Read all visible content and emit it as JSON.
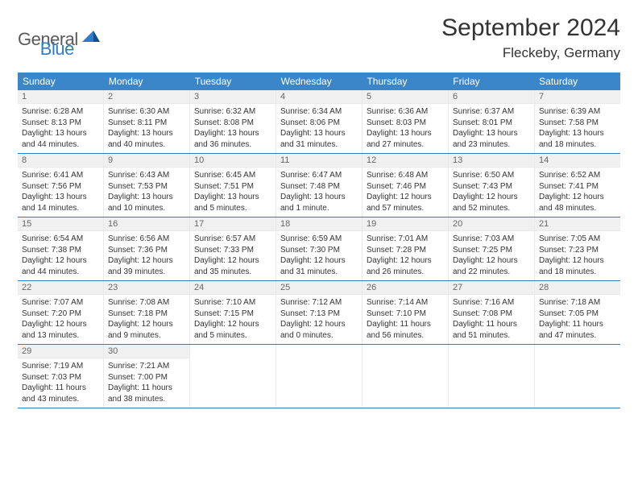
{
  "brand": {
    "text_left": "General",
    "text_right": "Blue"
  },
  "title": "September 2024",
  "location": "Fleckeby, Germany",
  "colors": {
    "header_bg": "#3b86c8",
    "header_text": "#ffffff",
    "rule": "#2f7bcb",
    "daynum_bg": "#f0f0f0",
    "daynum_text": "#666666",
    "cell_border": "#e9e9e9",
    "body_text": "#333333",
    "logo_gray": "#5a5a5a",
    "logo_blue": "#2f7bcb",
    "background": "#ffffff"
  },
  "typography": {
    "title_fontsize": 30,
    "location_fontsize": 17,
    "dow_fontsize": 12,
    "daynum_fontsize": 11,
    "body_fontsize": 10
  },
  "dow": [
    "Sunday",
    "Monday",
    "Tuesday",
    "Wednesday",
    "Thursday",
    "Friday",
    "Saturday"
  ],
  "weeks": [
    [
      {
        "n": "1",
        "sunrise": "Sunrise: 6:28 AM",
        "sunset": "Sunset: 8:13 PM",
        "daylight": "Daylight: 13 hours and 44 minutes."
      },
      {
        "n": "2",
        "sunrise": "Sunrise: 6:30 AM",
        "sunset": "Sunset: 8:11 PM",
        "daylight": "Daylight: 13 hours and 40 minutes."
      },
      {
        "n": "3",
        "sunrise": "Sunrise: 6:32 AM",
        "sunset": "Sunset: 8:08 PM",
        "daylight": "Daylight: 13 hours and 36 minutes."
      },
      {
        "n": "4",
        "sunrise": "Sunrise: 6:34 AM",
        "sunset": "Sunset: 8:06 PM",
        "daylight": "Daylight: 13 hours and 31 minutes."
      },
      {
        "n": "5",
        "sunrise": "Sunrise: 6:36 AM",
        "sunset": "Sunset: 8:03 PM",
        "daylight": "Daylight: 13 hours and 27 minutes."
      },
      {
        "n": "6",
        "sunrise": "Sunrise: 6:37 AM",
        "sunset": "Sunset: 8:01 PM",
        "daylight": "Daylight: 13 hours and 23 minutes."
      },
      {
        "n": "7",
        "sunrise": "Sunrise: 6:39 AM",
        "sunset": "Sunset: 7:58 PM",
        "daylight": "Daylight: 13 hours and 18 minutes."
      }
    ],
    [
      {
        "n": "8",
        "sunrise": "Sunrise: 6:41 AM",
        "sunset": "Sunset: 7:56 PM",
        "daylight": "Daylight: 13 hours and 14 minutes."
      },
      {
        "n": "9",
        "sunrise": "Sunrise: 6:43 AM",
        "sunset": "Sunset: 7:53 PM",
        "daylight": "Daylight: 13 hours and 10 minutes."
      },
      {
        "n": "10",
        "sunrise": "Sunrise: 6:45 AM",
        "sunset": "Sunset: 7:51 PM",
        "daylight": "Daylight: 13 hours and 5 minutes."
      },
      {
        "n": "11",
        "sunrise": "Sunrise: 6:47 AM",
        "sunset": "Sunset: 7:48 PM",
        "daylight": "Daylight: 13 hours and 1 minute."
      },
      {
        "n": "12",
        "sunrise": "Sunrise: 6:48 AM",
        "sunset": "Sunset: 7:46 PM",
        "daylight": "Daylight: 12 hours and 57 minutes."
      },
      {
        "n": "13",
        "sunrise": "Sunrise: 6:50 AM",
        "sunset": "Sunset: 7:43 PM",
        "daylight": "Daylight: 12 hours and 52 minutes."
      },
      {
        "n": "14",
        "sunrise": "Sunrise: 6:52 AM",
        "sunset": "Sunset: 7:41 PM",
        "daylight": "Daylight: 12 hours and 48 minutes."
      }
    ],
    [
      {
        "n": "15",
        "sunrise": "Sunrise: 6:54 AM",
        "sunset": "Sunset: 7:38 PM",
        "daylight": "Daylight: 12 hours and 44 minutes."
      },
      {
        "n": "16",
        "sunrise": "Sunrise: 6:56 AM",
        "sunset": "Sunset: 7:36 PM",
        "daylight": "Daylight: 12 hours and 39 minutes."
      },
      {
        "n": "17",
        "sunrise": "Sunrise: 6:57 AM",
        "sunset": "Sunset: 7:33 PM",
        "daylight": "Daylight: 12 hours and 35 minutes."
      },
      {
        "n": "18",
        "sunrise": "Sunrise: 6:59 AM",
        "sunset": "Sunset: 7:30 PM",
        "daylight": "Daylight: 12 hours and 31 minutes."
      },
      {
        "n": "19",
        "sunrise": "Sunrise: 7:01 AM",
        "sunset": "Sunset: 7:28 PM",
        "daylight": "Daylight: 12 hours and 26 minutes."
      },
      {
        "n": "20",
        "sunrise": "Sunrise: 7:03 AM",
        "sunset": "Sunset: 7:25 PM",
        "daylight": "Daylight: 12 hours and 22 minutes."
      },
      {
        "n": "21",
        "sunrise": "Sunrise: 7:05 AM",
        "sunset": "Sunset: 7:23 PM",
        "daylight": "Daylight: 12 hours and 18 minutes."
      }
    ],
    [
      {
        "n": "22",
        "sunrise": "Sunrise: 7:07 AM",
        "sunset": "Sunset: 7:20 PM",
        "daylight": "Daylight: 12 hours and 13 minutes."
      },
      {
        "n": "23",
        "sunrise": "Sunrise: 7:08 AM",
        "sunset": "Sunset: 7:18 PM",
        "daylight": "Daylight: 12 hours and 9 minutes."
      },
      {
        "n": "24",
        "sunrise": "Sunrise: 7:10 AM",
        "sunset": "Sunset: 7:15 PM",
        "daylight": "Daylight: 12 hours and 5 minutes."
      },
      {
        "n": "25",
        "sunrise": "Sunrise: 7:12 AM",
        "sunset": "Sunset: 7:13 PM",
        "daylight": "Daylight: 12 hours and 0 minutes."
      },
      {
        "n": "26",
        "sunrise": "Sunrise: 7:14 AM",
        "sunset": "Sunset: 7:10 PM",
        "daylight": "Daylight: 11 hours and 56 minutes."
      },
      {
        "n": "27",
        "sunrise": "Sunrise: 7:16 AM",
        "sunset": "Sunset: 7:08 PM",
        "daylight": "Daylight: 11 hours and 51 minutes."
      },
      {
        "n": "28",
        "sunrise": "Sunrise: 7:18 AM",
        "sunset": "Sunset: 7:05 PM",
        "daylight": "Daylight: 11 hours and 47 minutes."
      }
    ],
    [
      {
        "n": "29",
        "sunrise": "Sunrise: 7:19 AM",
        "sunset": "Sunset: 7:03 PM",
        "daylight": "Daylight: 11 hours and 43 minutes."
      },
      {
        "n": "30",
        "sunrise": "Sunrise: 7:21 AM",
        "sunset": "Sunset: 7:00 PM",
        "daylight": "Daylight: 11 hours and 38 minutes."
      },
      {
        "empty": true
      },
      {
        "empty": true
      },
      {
        "empty": true
      },
      {
        "empty": true
      },
      {
        "empty": true
      }
    ]
  ]
}
